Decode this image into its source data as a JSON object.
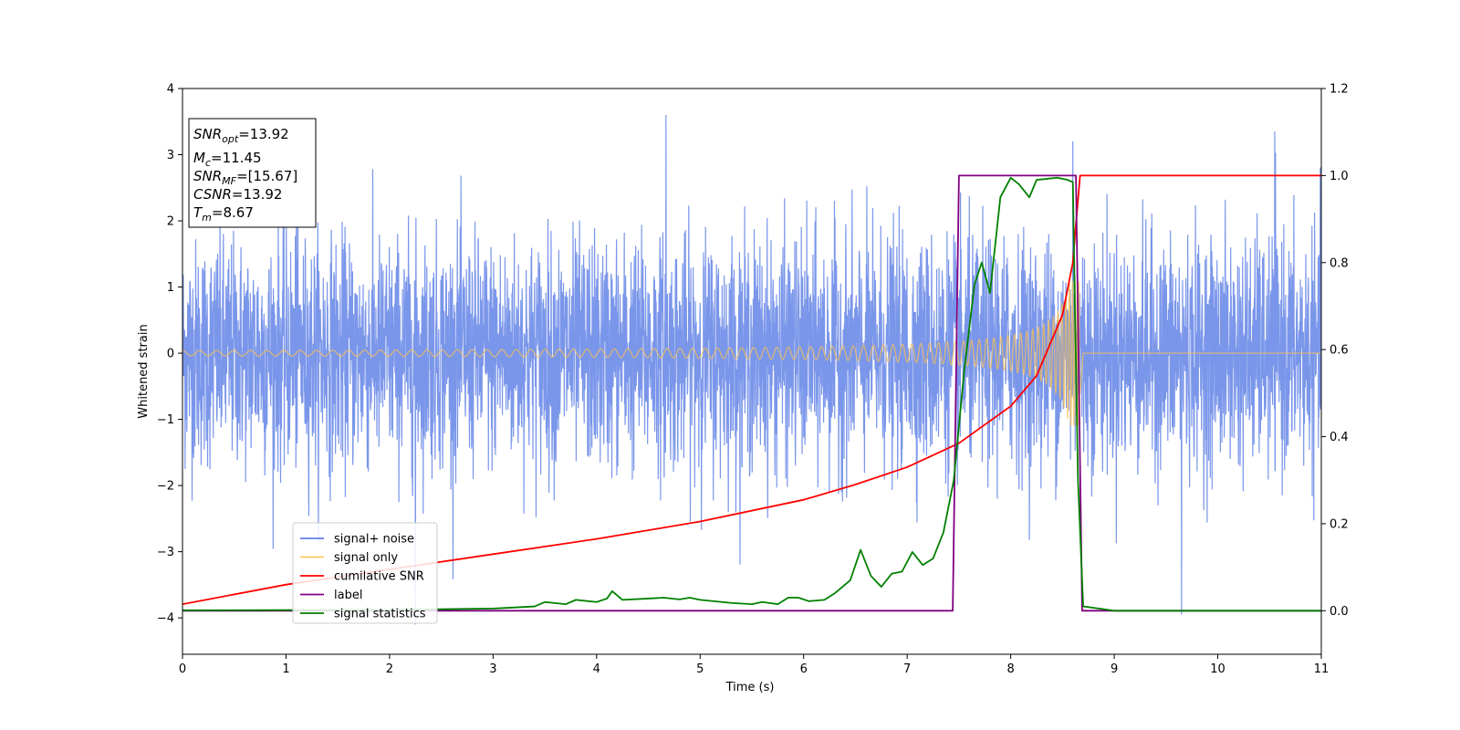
{
  "chart_data": {
    "type": "line",
    "xlabel": "Time (s)",
    "ylabel": "Whitened strain",
    "xlim": [
      0,
      11
    ],
    "ylim": [
      -4.55,
      4.0
    ],
    "y2lim": [
      -0.1,
      1.2
    ],
    "x_ticks": [
      "0",
      "1",
      "2",
      "3",
      "4",
      "5",
      "6",
      "7",
      "8",
      "9",
      "10",
      "11"
    ],
    "y_ticks": [
      {
        "value": 4,
        "label": "4"
      },
      {
        "value": 3,
        "label": "3"
      },
      {
        "value": 2,
        "label": "2"
      },
      {
        "value": 1,
        "label": "1"
      },
      {
        "value": 0,
        "label": "0"
      },
      {
        "value": -1,
        "label": "−1"
      },
      {
        "value": -2,
        "label": "−2"
      },
      {
        "value": -3,
        "label": "−3"
      },
      {
        "value": -4,
        "label": "−4"
      }
    ],
    "y2_ticks": [
      {
        "value": 1.2,
        "label": "1.2"
      },
      {
        "value": 1.0,
        "label": "1.0"
      },
      {
        "value": 0.8,
        "label": "0.8"
      },
      {
        "value": 0.6,
        "label": "0.6"
      },
      {
        "value": 0.4,
        "label": "0.4"
      },
      {
        "value": 0.2,
        "label": "0.2"
      },
      {
        "value": 0.0,
        "label": "0.0"
      }
    ],
    "grid": false,
    "legend_position": "lower-left",
    "annotation": {
      "snr_opt": {
        "base": "SNR",
        "sub": "opt",
        "value": "=13.92"
      },
      "mc": {
        "base": "M",
        "sub": "c",
        "value": "=11.45"
      },
      "snr_mf": {
        "base": "SNR",
        "sub": "MF",
        "value": "=[15.67]"
      },
      "csnr": {
        "base": "CSNR",
        "sub": "",
        "value": "=13.92"
      },
      "tm": {
        "base": "T",
        "sub": "m",
        "value": "=8.67"
      }
    },
    "series": [
      {
        "name": "signal+ noise",
        "color": "#4169e1",
        "opacity": 0.7,
        "axis": "left",
        "kind": "gaussian-noise",
        "sigma": 0.85,
        "x_range": [
          0,
          11
        ],
        "peak_points": [
          [
            4.67,
            3.6
          ],
          [
            2.25,
            -4.1
          ],
          [
            9.65,
            -3.95
          ],
          [
            8.6,
            3.2
          ],
          [
            1.1,
            3.1
          ],
          [
            10.55,
            3.35
          ]
        ]
      },
      {
        "name": "signal only",
        "color": "#ffc14d",
        "opacity": 0.75,
        "axis": "left",
        "kind": "chirp",
        "merger_time": 8.67,
        "start_amplitude": 0.04,
        "end_amplitude": 1.1,
        "x_range": [
          0,
          11
        ]
      },
      {
        "name": "cumilative SNR",
        "color": "#ff0000",
        "axis": "right",
        "points": [
          [
            0,
            0.015
          ],
          [
            1,
            0.06
          ],
          [
            2,
            0.095
          ],
          [
            3,
            0.13
          ],
          [
            4,
            0.165
          ],
          [
            5,
            0.205
          ],
          [
            6,
            0.255
          ],
          [
            6.5,
            0.29
          ],
          [
            7,
            0.33
          ],
          [
            7.5,
            0.385
          ],
          [
            8,
            0.47
          ],
          [
            8.25,
            0.54
          ],
          [
            8.5,
            0.68
          ],
          [
            8.6,
            0.8
          ],
          [
            8.62,
            0.86
          ],
          [
            8.67,
            1.0
          ],
          [
            11,
            1.0
          ]
        ]
      },
      {
        "name": "label",
        "color": "#800080",
        "axis": "right",
        "points": [
          [
            0,
            0.0
          ],
          [
            7.44,
            0.0
          ],
          [
            7.5,
            1.0
          ],
          [
            8.63,
            1.0
          ],
          [
            8.69,
            0.0
          ],
          [
            11,
            0.0
          ]
        ]
      },
      {
        "name": "signal statistics",
        "color": "#008000",
        "axis": "right",
        "points": [
          [
            0,
            0.001
          ],
          [
            2.0,
            0.002
          ],
          [
            3.0,
            0.005
          ],
          [
            3.4,
            0.01
          ],
          [
            3.5,
            0.02
          ],
          [
            3.7,
            0.015
          ],
          [
            3.8,
            0.025
          ],
          [
            4.0,
            0.02
          ],
          [
            4.1,
            0.028
          ],
          [
            4.15,
            0.045
          ],
          [
            4.25,
            0.025
          ],
          [
            4.5,
            0.028
          ],
          [
            4.65,
            0.03
          ],
          [
            4.8,
            0.026
          ],
          [
            4.9,
            0.03
          ],
          [
            5.0,
            0.025
          ],
          [
            5.3,
            0.018
          ],
          [
            5.5,
            0.015
          ],
          [
            5.6,
            0.02
          ],
          [
            5.75,
            0.015
          ],
          [
            5.85,
            0.03
          ],
          [
            5.95,
            0.03
          ],
          [
            6.05,
            0.022
          ],
          [
            6.2,
            0.025
          ],
          [
            6.3,
            0.04
          ],
          [
            6.45,
            0.07
          ],
          [
            6.55,
            0.14
          ],
          [
            6.65,
            0.08
          ],
          [
            6.75,
            0.055
          ],
          [
            6.85,
            0.085
          ],
          [
            6.95,
            0.09
          ],
          [
            7.05,
            0.135
          ],
          [
            7.15,
            0.105
          ],
          [
            7.25,
            0.12
          ],
          [
            7.35,
            0.18
          ],
          [
            7.45,
            0.3
          ],
          [
            7.55,
            0.55
          ],
          [
            7.65,
            0.75
          ],
          [
            7.72,
            0.8
          ],
          [
            7.8,
            0.73
          ],
          [
            7.9,
            0.95
          ],
          [
            8.0,
            0.995
          ],
          [
            8.08,
            0.98
          ],
          [
            8.18,
            0.95
          ],
          [
            8.25,
            0.99
          ],
          [
            8.45,
            0.995
          ],
          [
            8.55,
            0.99
          ],
          [
            8.6,
            0.985
          ],
          [
            8.62,
            0.7
          ],
          [
            8.65,
            0.3
          ],
          [
            8.7,
            0.01
          ],
          [
            9.0,
            0.0
          ],
          [
            11,
            0.0
          ]
        ]
      }
    ]
  }
}
